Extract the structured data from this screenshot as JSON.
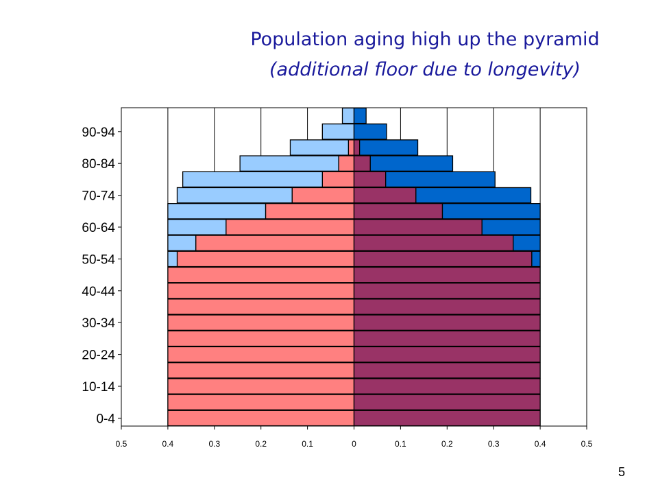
{
  "title": "Population aging high up the pyramid",
  "subtitle": "(additional floor due to longevity)",
  "slide_number": "5",
  "chart_data": {
    "type": "bar",
    "orientation": "horizontal",
    "layout": "population-pyramid",
    "categories": [
      "0-4",
      "5-9",
      "10-14",
      "15-19",
      "20-24",
      "25-29",
      "30-34",
      "35-39",
      "40-44",
      "45-49",
      "50-54",
      "55-59",
      "60-64",
      "65-69",
      "70-74",
      "75-79",
      "80-84",
      "85-89",
      "90-94",
      "95-99"
    ],
    "y_tick_labels": [
      "0-4",
      "10-14",
      "20-24",
      "30-34",
      "40-44",
      "50-54",
      "60-64",
      "70-74",
      "80-84",
      "90-94"
    ],
    "x_tick_labels": [
      "0.5",
      "0.4",
      "0.3",
      "0.2",
      "0.1",
      "0",
      "0.1",
      "0.2",
      "0.3",
      "0.4",
      "0.5"
    ],
    "xlim": [
      -0.5,
      0.5
    ],
    "grid": "vertical",
    "legend": "none",
    "series": [
      {
        "side": "left",
        "color": "#ff8080",
        "values": [
          0.4,
          0.4,
          0.4,
          0.4,
          0.4,
          0.4,
          0.4,
          0.4,
          0.4,
          0.4,
          0.38,
          0.34,
          0.275,
          0.19,
          0.133,
          0.068,
          0.033,
          0.012,
          0,
          0
        ]
      },
      {
        "side": "left",
        "color": "#99ccff",
        "values": [
          0,
          0,
          0,
          0,
          0,
          0,
          0,
          0,
          0,
          0,
          0.02,
          0.06,
          0.125,
          0.21,
          0.247,
          0.3,
          0.212,
          0.125,
          0.068,
          0.025
        ]
      },
      {
        "side": "right",
        "color": "#993366",
        "values": [
          0.4,
          0.4,
          0.4,
          0.4,
          0.4,
          0.4,
          0.4,
          0.4,
          0.4,
          0.4,
          0.382,
          0.342,
          0.275,
          0.19,
          0.133,
          0.068,
          0.035,
          0.012,
          0,
          0
        ]
      },
      {
        "side": "right",
        "color": "#0066cc",
        "values": [
          0,
          0,
          0,
          0,
          0,
          0,
          0,
          0,
          0,
          0,
          0.018,
          0.058,
          0.125,
          0.21,
          0.247,
          0.235,
          0.177,
          0.125,
          0.07,
          0.026
        ]
      }
    ]
  }
}
